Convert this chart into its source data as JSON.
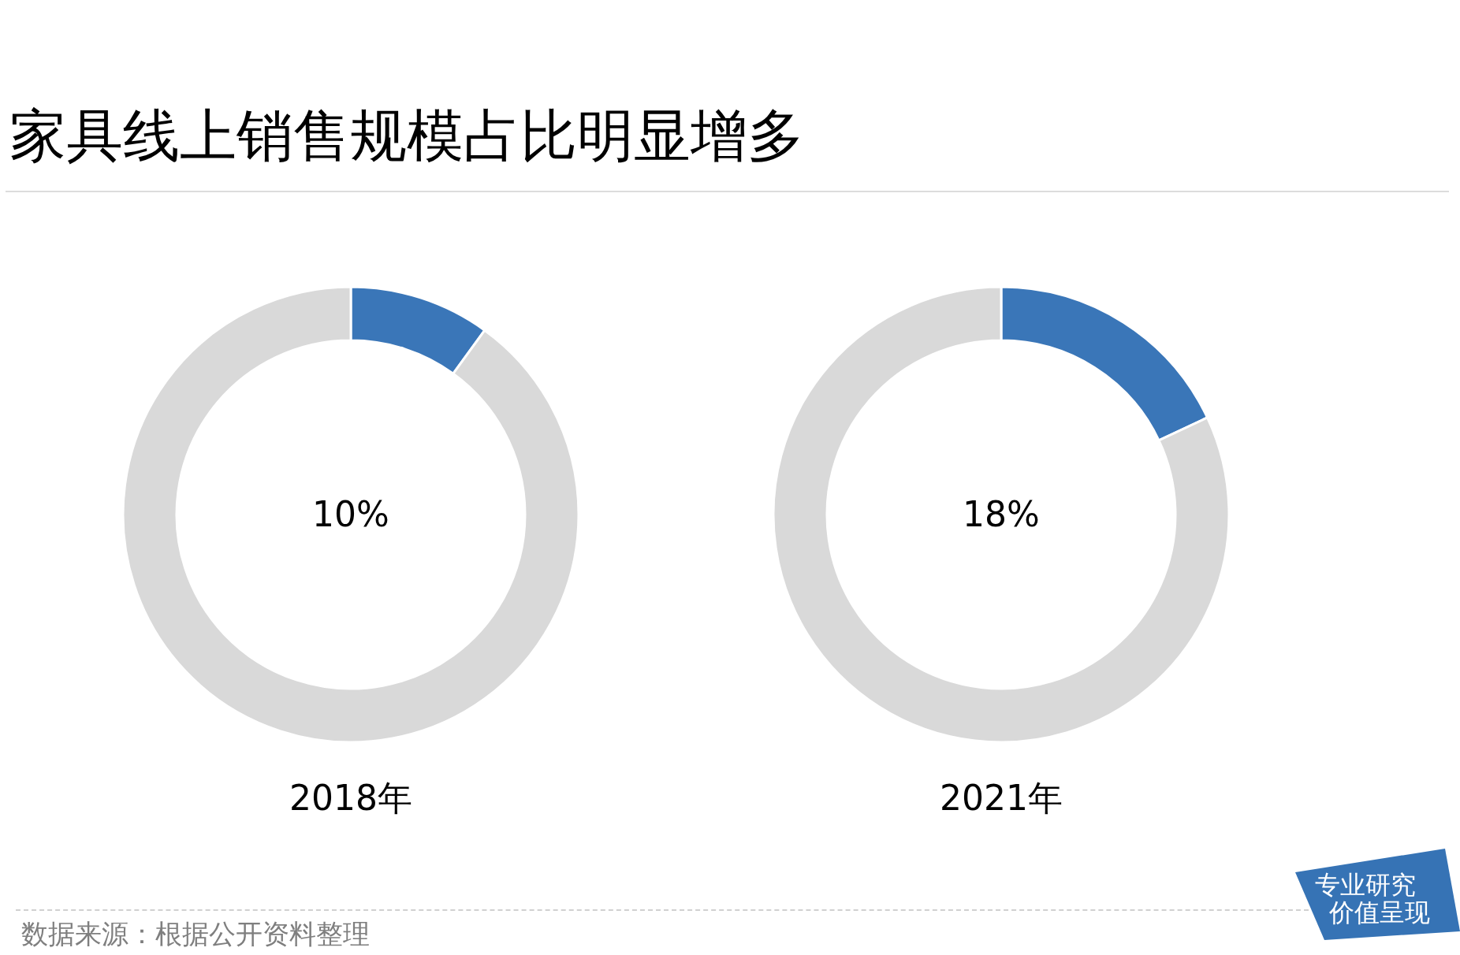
{
  "chart_data": [
    {
      "type": "donut",
      "title": "家具线上销售规模占比明显增多",
      "xlabel": "2018年",
      "categories": [
        null,
        null
      ],
      "values": [
        10,
        90
      ],
      "colors": [
        "#3a76b8",
        "#d9d9d9"
      ],
      "value_labels": [
        "10%",
        null
      ],
      "annotations": [
        "数据来源：根据公开资料整理",
        "专业研究",
        "价值呈现"
      ]
    },
    {
      "type": "donut",
      "xlabel": "2021年",
      "categories": [
        null,
        null
      ],
      "values": [
        18,
        82
      ],
      "colors": [
        "#3a76b8",
        "#d9d9d9"
      ],
      "value_labels": [
        "18%",
        null
      ]
    }
  ]
}
